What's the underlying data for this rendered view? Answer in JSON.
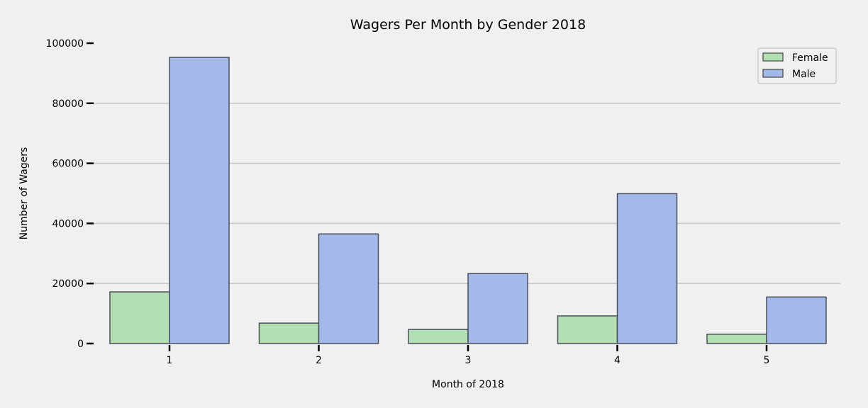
{
  "chart_data": {
    "type": "bar",
    "title": "Wagers Per Month by Gender 2018",
    "xlabel": "Month of 2018",
    "ylabel": "Number of Wagers",
    "categories": [
      "1",
      "2",
      "3",
      "4",
      "5"
    ],
    "ylim": [
      0,
      100000
    ],
    "yticks": [
      "0",
      "20000",
      "40000",
      "60000",
      "80000",
      "100000"
    ],
    "grid": "horizontal",
    "legend_position": "top-right",
    "series": [
      {
        "name": "Female",
        "color": "#b2e0b2",
        "values": [
          17200,
          6800,
          4700,
          9200,
          3100
        ]
      },
      {
        "name": "Male",
        "color": "#a3b9ea",
        "values": [
          95300,
          36500,
          23300,
          49900,
          15500
        ]
      }
    ]
  }
}
